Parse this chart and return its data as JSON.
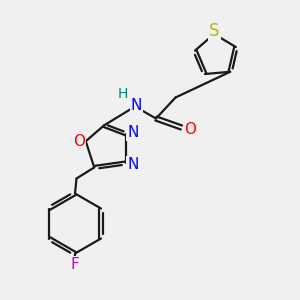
{
  "bg_color": "#f0f0f0",
  "bond_color": "#1a1a1a",
  "bond_width": 1.6,
  "atom_colors": {
    "S": "#b8b800",
    "O": "#ff0000",
    "N": "#0000ff",
    "F": "#cc00cc",
    "H": "#008080",
    "C": "#1a1a1a"
  },
  "font_size_atom": 10
}
